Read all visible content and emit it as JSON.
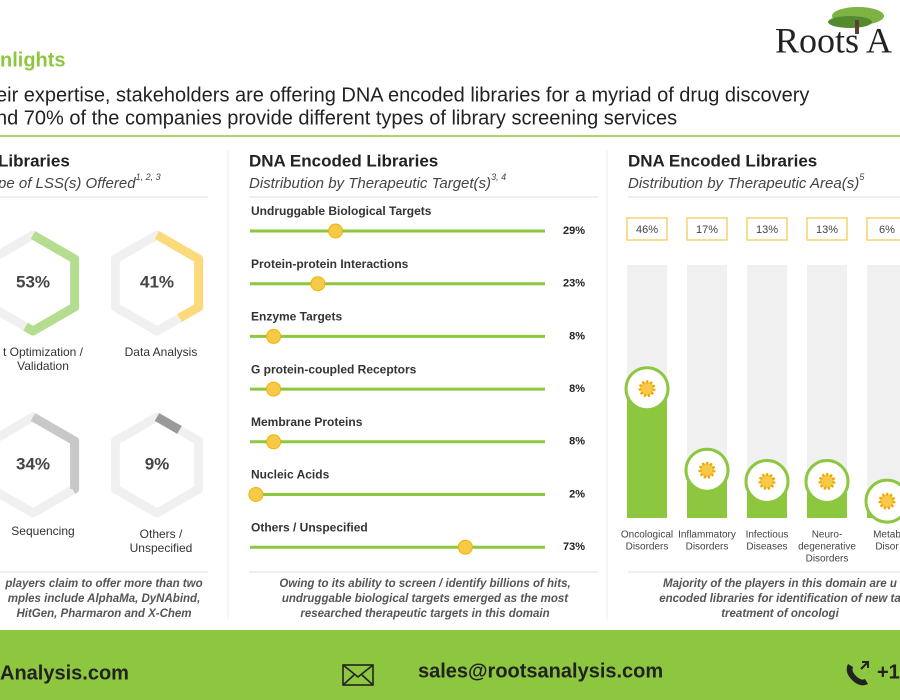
{
  "header": {
    "title": "nlights",
    "subtitle_lines": [
      "eir expertise, stakeholders are offering DNA encoded libraries for a myriad of drug discovery",
      "nd 70% of the companies provide different types of library screening services"
    ],
    "logo": "Roots A"
  },
  "services_panel": {
    "title": "Libraries",
    "subtitle": "pe of LSS(s) Offered",
    "superscript": "1, 2, 3",
    "items": [
      {
        "label_lines": [
          "t Optimization /",
          "Validation"
        ],
        "value": 53,
        "value_label": "53%",
        "color": "#b5dd8f"
      },
      {
        "label_lines": [
          "Data Analysis"
        ],
        "value": 41,
        "value_label": "41%",
        "color": "#fcd97a"
      },
      {
        "label_lines": [
          "Sequencing"
        ],
        "value": 34,
        "value_label": "34%",
        "color": "#c8c8c8"
      },
      {
        "label_lines": [
          "Others /",
          "Unspecified"
        ],
        "value": 9,
        "value_label": "9%",
        "color": "#9a9a9a"
      }
    ],
    "note_lines": [
      "players claim to offer more than two",
      "mples include AlphaMa, DyNAbind,",
      "HitGen, Pharmaron and X-Chem"
    ]
  },
  "target_panel": {
    "title": "DNA Encoded Libraries",
    "subtitle": "Distribution by Therapeutic Target(s)",
    "superscript": "3, 4",
    "categories": [
      "Undruggable Biological Targets",
      "Protein-protein Interactions",
      "Enzyme Targets",
      "G protein-coupled Receptors",
      "Membrane Proteins",
      "Nucleic Acids",
      "Others / Unspecified"
    ],
    "values": [
      29,
      23,
      8,
      8,
      8,
      2,
      73
    ],
    "value_labels": [
      "29%",
      "23%",
      "8%",
      "8%",
      "8%",
      "2%",
      "73%"
    ],
    "xlim": [
      0,
      100
    ],
    "color": "#8dc63f",
    "dot_color": "#f7c948",
    "note_lines": [
      "Owing to its ability to screen / identify billions of hits,",
      "undruggable biological targets emerged as the most",
      "researched therapeutic targets in this domain"
    ]
  },
  "area_panel": {
    "title": "DNA Encoded Libraries",
    "subtitle": "Distribution by Therapeutic Area(s)",
    "superscript": "5",
    "categories": [
      [
        "Oncological",
        "Disorders"
      ],
      [
        "Inflammatory",
        "Disorders"
      ],
      [
        "Infectious",
        "Diseases"
      ],
      [
        "Neuro-",
        "degenerative",
        "Disorders"
      ],
      [
        "Metab",
        "Disor"
      ]
    ],
    "values": [
      46,
      17,
      13,
      13,
      6
    ],
    "value_labels": [
      "46%",
      "17%",
      "13%",
      "13%",
      "6%"
    ],
    "ylim": [
      0,
      90
    ],
    "color": "#8dc63f",
    "note_lines": [
      "Majority of the players in this domain are u",
      "encoded libraries for identification of new ta",
      "treatment of oncologi"
    ]
  },
  "footer": {
    "website": "Analysis.com",
    "email": "sales@rootsanalysis.com",
    "phone": "+1"
  }
}
